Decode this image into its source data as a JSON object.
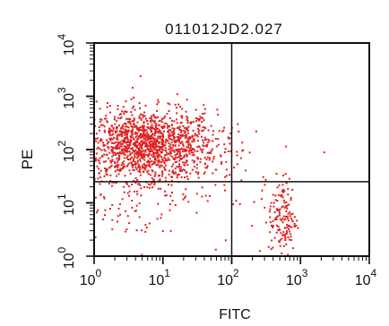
{
  "chart_data": {
    "type": "scatter",
    "title": "011012JD2.027",
    "xlabel": "FITC",
    "ylabel": "PE",
    "x_scale": "log",
    "y_scale": "log",
    "xlim": [
      1,
      10000
    ],
    "ylim": [
      1,
      10000
    ],
    "x_ticks": [
      {
        "value": 1,
        "base": "10",
        "exp": "0"
      },
      {
        "value": 10,
        "base": "10",
        "exp": "1"
      },
      {
        "value": 100,
        "base": "10",
        "exp": "2"
      },
      {
        "value": 1000,
        "base": "10",
        "exp": "3"
      },
      {
        "value": 10000,
        "base": "10",
        "exp": "4"
      }
    ],
    "y_ticks": [
      {
        "value": 1,
        "base": "10",
        "exp": "0"
      },
      {
        "value": 10,
        "base": "10",
        "exp": "1"
      },
      {
        "value": 100,
        "base": "10",
        "exp": "2"
      },
      {
        "value": 1000,
        "base": "10",
        "exp": "3"
      },
      {
        "value": 10000,
        "base": "10",
        "exp": "4"
      }
    ],
    "quadrant_gate": {
      "x": 100,
      "y": 25
    },
    "grid": false,
    "point_color": "#e02020",
    "populations": [
      {
        "x_center": 6,
        "x_spread_decades": 0.5,
        "y_center": 120,
        "y_spread_decades": 0.33,
        "count": 1400
      },
      {
        "x_center": 4,
        "x_spread_decades": 0.7,
        "y_center": 20,
        "y_spread_decades": 0.55,
        "count": 160
      },
      {
        "x_center": 550,
        "x_spread_decades": 0.1,
        "y_center": 5,
        "y_spread_decades": 0.4,
        "count": 150
      },
      {
        "x_center": 20,
        "x_spread_decades": 1.2,
        "y_center": 50,
        "y_spread_decades": 1.0,
        "count": 50
      }
    ]
  }
}
